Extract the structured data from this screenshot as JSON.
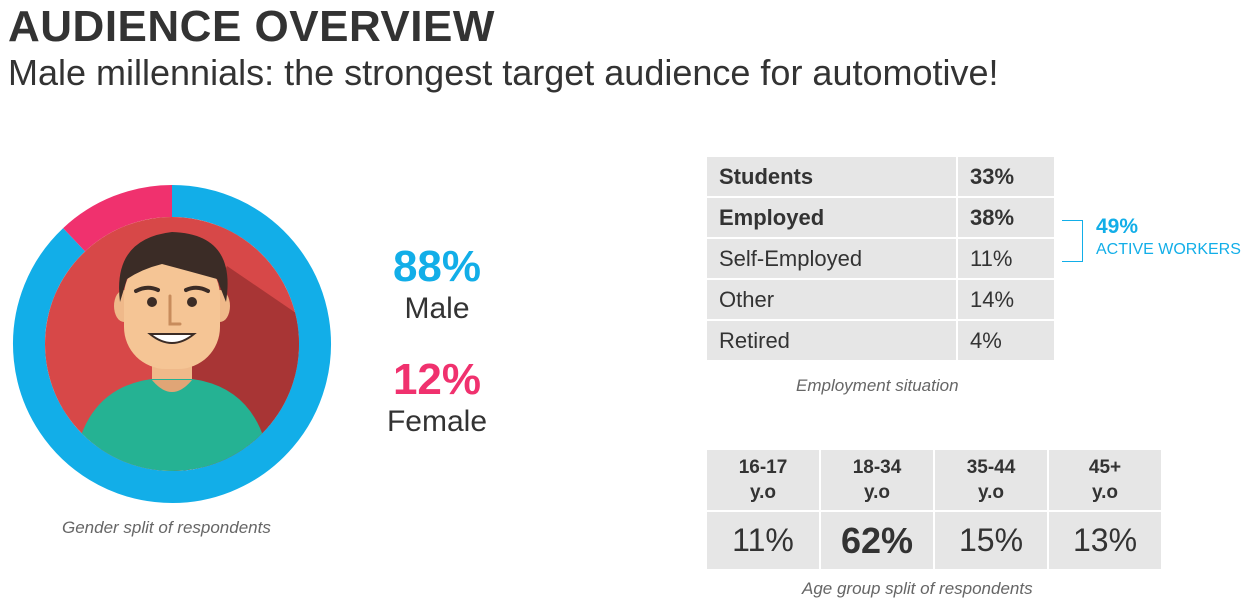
{
  "header": {
    "title": "AUDIENCE OVERVIEW",
    "subtitle": "Male millennials: the strongest target audience for automotive!"
  },
  "colors": {
    "male": "#12aee8",
    "female": "#f0316e",
    "avatar_bg": "#d74848",
    "shirt": "#25b293"
  },
  "gender": {
    "male_pct": "88%",
    "male_label": "Male",
    "female_pct": "12%",
    "female_label": "Female",
    "caption": "Gender split of respondents"
  },
  "employment": {
    "rows": [
      {
        "label": "Students",
        "value": "33%"
      },
      {
        "label": "Employed",
        "value": "38%"
      },
      {
        "label": "Self-Employed",
        "value": "11%"
      },
      {
        "label": "Other",
        "value": "14%"
      },
      {
        "label": "Retired",
        "value": "4%"
      }
    ],
    "active_pct": "49%",
    "active_label": "ACTIVE WORKERS",
    "caption": "Employment situation"
  },
  "age": {
    "headers": [
      {
        "line1": "16-17",
        "line2": "y.o"
      },
      {
        "line1": "18-34",
        "line2": "y.o"
      },
      {
        "line1": "35-44",
        "line2": "y.o"
      },
      {
        "line1": "45+",
        "line2": "y.o"
      }
    ],
    "values": [
      "11%",
      "62%",
      "15%",
      "13%"
    ],
    "caption": "Age group split of respondents"
  },
  "chart_data": [
    {
      "type": "pie",
      "categories": [
        "Male",
        "Female"
      ],
      "values": [
        88,
        12
      ]
    },
    {
      "type": "table",
      "categories": [
        "Students",
        "Employed",
        "Self-Employed",
        "Other",
        "Retired"
      ],
      "values": [
        33,
        38,
        11,
        14,
        4
      ]
    },
    {
      "type": "table",
      "categories": [
        "16-17 y.o",
        "18-34 y.o",
        "35-44 y.o",
        "45+ y.o"
      ],
      "values": [
        11,
        62,
        15,
        13
      ]
    }
  ]
}
